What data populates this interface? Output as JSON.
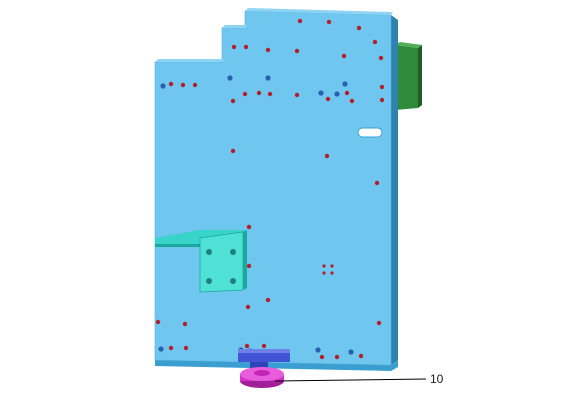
{
  "callouts": [
    {
      "label": "10"
    }
  ],
  "colors": {
    "background": "#ffffff",
    "plate_face": "#6fc6ef",
    "plate_edge": "#3a9fd0",
    "plate_edge_dark": "#2e83ad",
    "hole_red": "#b3202a",
    "hole_blue": "#2a5fb0",
    "bracket_face": "#38d3c9",
    "bracket_dark": "#1aa89e",
    "green_board": "#2f8a3a",
    "green_board_dark": "#1d5e25",
    "foot_blue": "#3f55d6",
    "foot_magenta": "#d631c8",
    "leader_line": "#000000"
  }
}
